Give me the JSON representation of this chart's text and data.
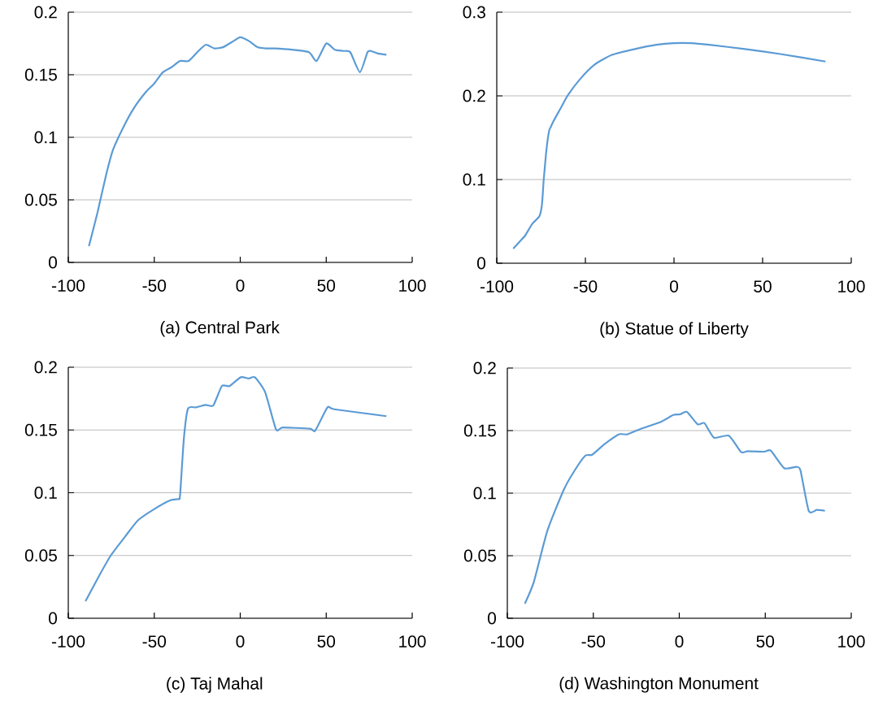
{
  "chart_data": [
    {
      "type": "line",
      "title": "(a) Central Park",
      "color": "#5b9bd5",
      "grid": "y",
      "xlim": [
        -100,
        100
      ],
      "ylim": [
        0,
        0.2
      ],
      "xticks": [
        -100,
        -50,
        0,
        50,
        100
      ],
      "yticks": [
        0,
        0.05,
        0.1,
        0.15,
        0.2
      ],
      "x": [
        -88,
        -83,
        -78,
        -74,
        -68,
        -62,
        -55,
        -50,
        -45,
        -40,
        -35,
        -30,
        -25,
        -20,
        -15,
        -10,
        -5,
        0,
        5,
        10,
        15,
        20,
        30,
        40,
        44.4,
        50,
        55,
        60,
        64,
        69.6,
        74,
        76,
        80,
        85
      ],
      "values": [
        0.013,
        0.04,
        0.07,
        0.09,
        0.108,
        0.123,
        0.136,
        0.143,
        0.152,
        0.156,
        0.161,
        0.161,
        0.168,
        0.174,
        0.171,
        0.172,
        0.176,
        0.18,
        0.177,
        0.172,
        0.171,
        0.171,
        0.17,
        0.168,
        0.161,
        0.175,
        0.17,
        0.169,
        0.168,
        0.152,
        0.168,
        0.169,
        0.167,
        0.166
      ]
    },
    {
      "type": "line",
      "title": "(b) Statue of Liberty",
      "color": "#5b9bd5",
      "grid": "y",
      "xlim": [
        -100,
        100
      ],
      "ylim": [
        0,
        0.3
      ],
      "xticks": [
        -100,
        -50,
        0,
        50,
        100
      ],
      "yticks": [
        0,
        0.1,
        0.2,
        0.3
      ],
      "x": [
        -90.7,
        -87,
        -84,
        -80,
        -76,
        -74.5,
        -73.5,
        -72,
        -70.5,
        -69.7,
        -68.2,
        -64,
        -59.8,
        -53,
        -45,
        -35,
        -22,
        -10,
        0,
        10,
        20,
        40,
        60,
        85.5
      ],
      "values": [
        0.0175,
        0.026,
        0.033,
        0.047,
        0.056,
        0.07,
        0.1,
        0.135,
        0.158,
        0.162,
        0.169,
        0.185,
        0.201,
        0.22,
        0.237,
        0.249,
        0.256,
        0.261,
        0.263,
        0.263,
        0.261,
        0.256,
        0.25,
        0.241
      ]
    },
    {
      "type": "line",
      "title": "(c) Taj Mahal",
      "color": "#5b9bd5",
      "grid": "y",
      "xlim": [
        -100,
        100
      ],
      "ylim": [
        0,
        0.2
      ],
      "xticks": [
        -100,
        -50,
        0,
        50,
        100
      ],
      "yticks": [
        0,
        0.05,
        0.1,
        0.15,
        0.2
      ],
      "x": [
        -90,
        -82,
        -75.3,
        -67,
        -59.5,
        -50,
        -40.6,
        -35.9,
        -35,
        -32.8,
        -30.4,
        -25.7,
        -20.2,
        -15.7,
        -10.7,
        -6.3,
        0.3,
        5,
        8.5,
        14.5,
        20.8,
        24.7,
        40.5,
        43.6,
        50.7,
        54.6,
        85
      ],
      "values": [
        0.0136,
        0.034,
        0.05,
        0.065,
        0.078,
        0.087,
        0.094,
        0.095,
        0.098,
        0.143,
        0.167,
        0.168,
        0.17,
        0.1695,
        0.185,
        0.185,
        0.192,
        0.191,
        0.192,
        0.18,
        0.1505,
        0.152,
        0.151,
        0.1495,
        0.168,
        0.1665,
        0.161
      ]
    },
    {
      "type": "line",
      "title": "(d) Washington Monument",
      "color": "#5b9bd5",
      "grid": "y",
      "xlim": [
        -100,
        100
      ],
      "ylim": [
        0,
        0.2
      ],
      "xticks": [
        -100,
        -50,
        0,
        50,
        100
      ],
      "yticks": [
        0,
        0.05,
        0.1,
        0.15,
        0.2
      ],
      "x": [
        -89.8,
        -84.6,
        -76.7,
        -67.2,
        -60.9,
        -54.6,
        -50.7,
        -43.6,
        -35,
        -30.2,
        -23.1,
        -10.6,
        -3.5,
        0.5,
        4.4,
        10.7,
        14.6,
        20.2,
        28.8,
        35.9,
        39.8,
        49.3,
        53.2,
        61,
        68.2,
        70.5,
        75.3,
        80,
        84.7
      ],
      "values": [
        0.0117,
        0.029,
        0.07,
        0.1026,
        0.118,
        0.13,
        0.1307,
        0.139,
        0.147,
        0.147,
        0.151,
        0.157,
        0.1625,
        0.163,
        0.165,
        0.155,
        0.156,
        0.1443,
        0.1459,
        0.1329,
        0.1335,
        0.1331,
        0.134,
        0.12,
        0.121,
        0.118,
        0.0857,
        0.0866,
        0.0859
      ]
    }
  ]
}
